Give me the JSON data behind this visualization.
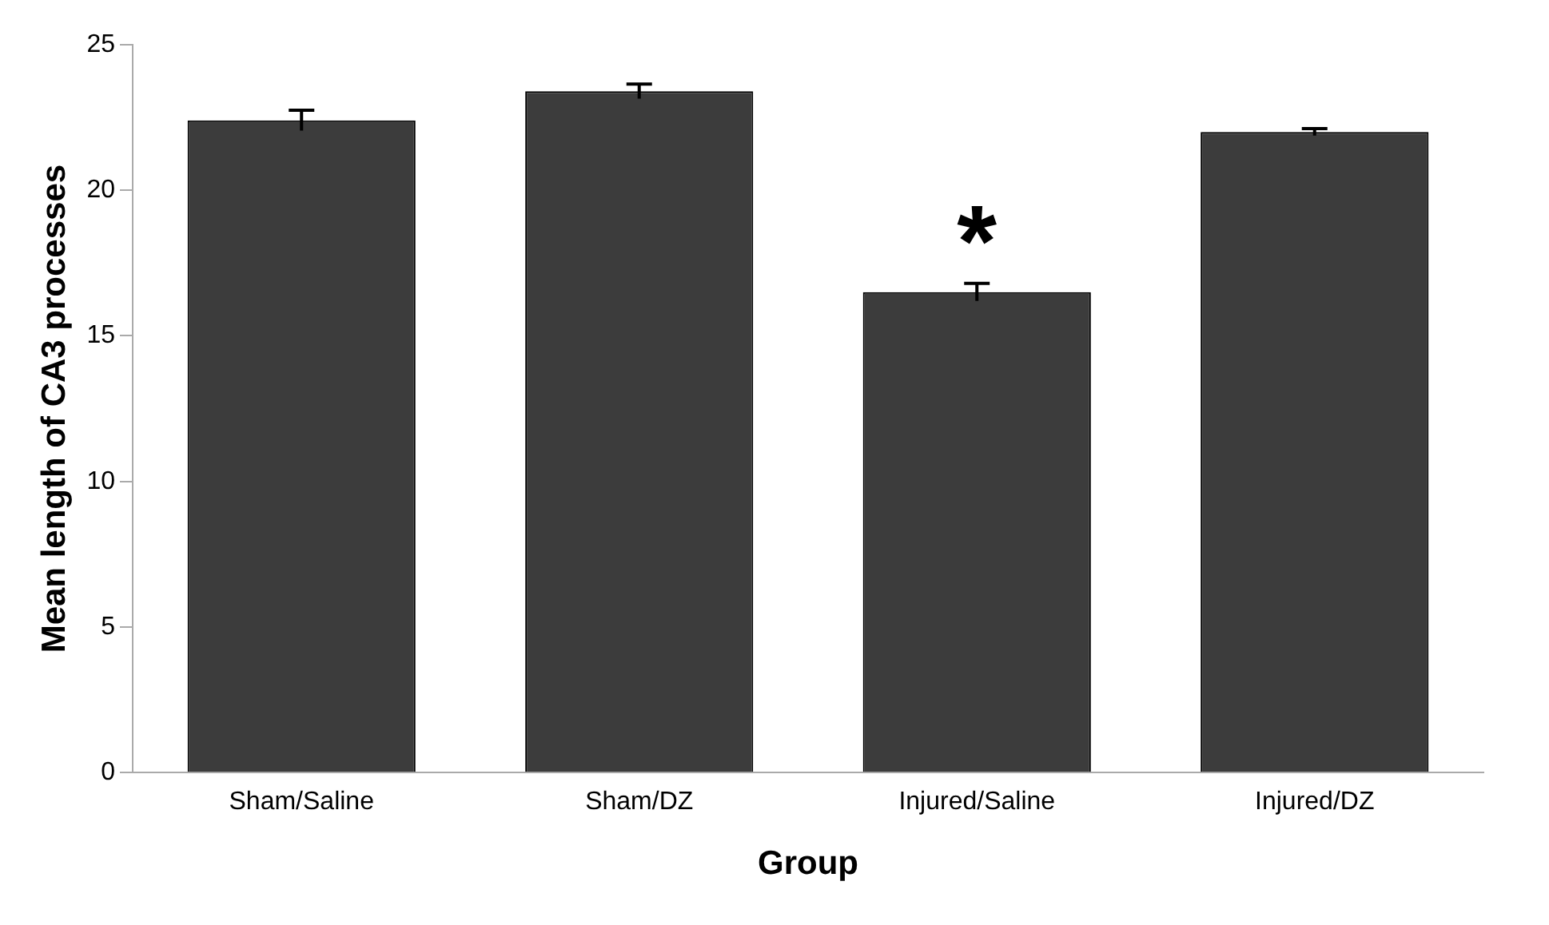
{
  "chart_data": {
    "type": "bar",
    "xlabel": "Group",
    "ylabel": "Mean length of CA3 processes",
    "categories": [
      "Sham/Saline",
      "Sham/DZ",
      "Injured/Saline",
      "Injured/DZ"
    ],
    "values": [
      22.4,
      23.4,
      16.5,
      22
    ],
    "errors": [
      0.35,
      0.25,
      0.3,
      0.12
    ],
    "color": "#3c3c3c",
    "ylim": [
      0,
      25
    ],
    "yticks": [
      0,
      5,
      10,
      15,
      20,
      25
    ],
    "grid": false,
    "legend": false,
    "annotations": [
      {
        "text": "*",
        "x": "Injured/Saline",
        "y": 16.5
      }
    ]
  }
}
